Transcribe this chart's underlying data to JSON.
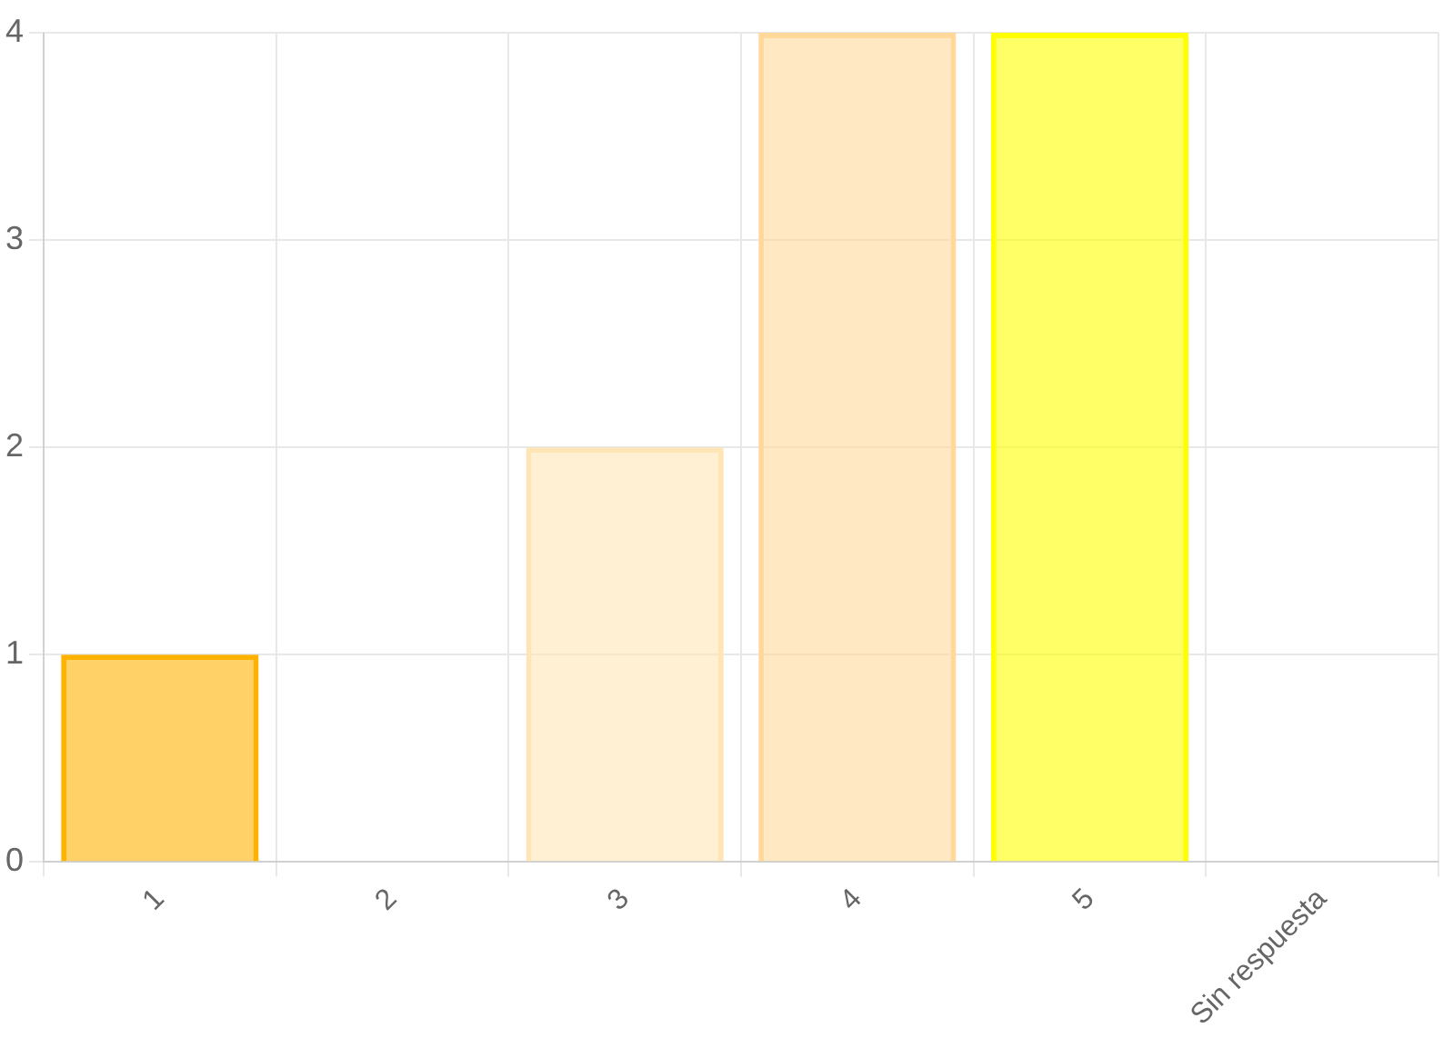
{
  "chart_data": {
    "type": "bar",
    "categories": [
      "1",
      "2",
      "3",
      "4",
      "5",
      "Sin respuesta"
    ],
    "values": [
      1,
      0,
      2,
      4,
      4,
      0
    ],
    "colors": [
      "#ffb300",
      "#b8860b",
      "#ffe4b5",
      "#ffd89a",
      "#ffff00",
      "#b5b500"
    ],
    "ylim": [
      0,
      4
    ],
    "yticks": [
      0,
      1,
      2,
      3,
      4
    ],
    "grid": true,
    "legend": false
  }
}
